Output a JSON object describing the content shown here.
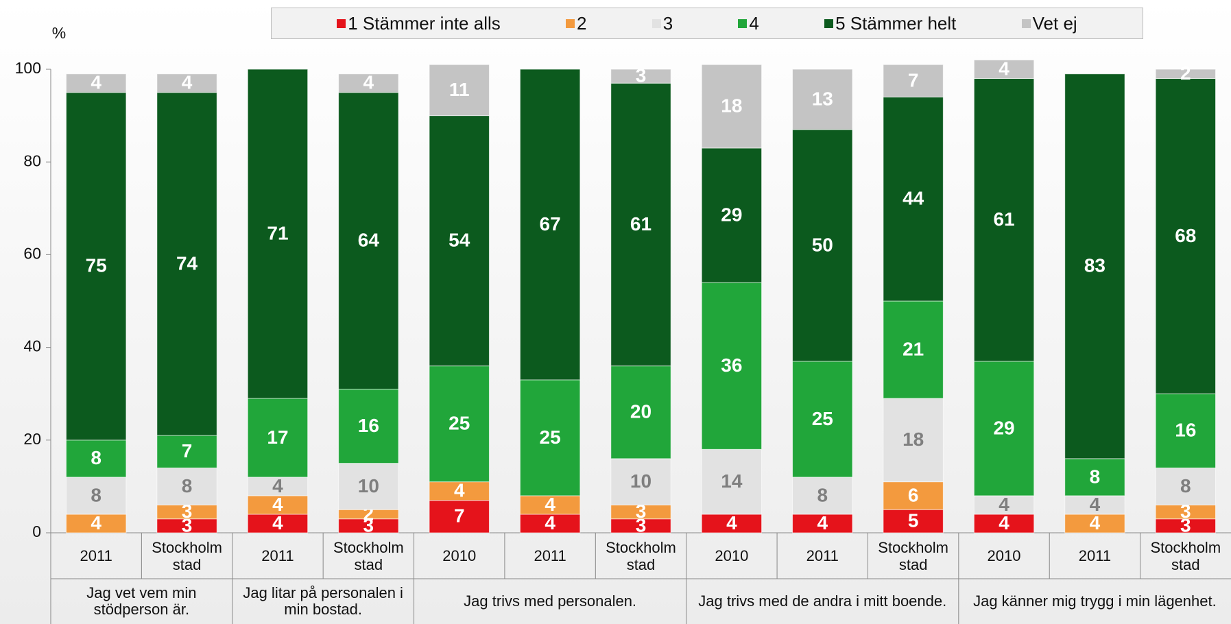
{
  "chart_data": {
    "type": "stacked-bar",
    "y_label": "%",
    "groups": [
      {
        "name": "Jag vet vem min stödperson är.",
        "categories": [
          "2011",
          "Stockholm stad"
        ]
      },
      {
        "name": "Jag litar på personalen i min bostad.",
        "categories": [
          "2011",
          "Stockholm stad"
        ]
      },
      {
        "name": "Jag trivs med personalen.",
        "categories": [
          "2010",
          "2011",
          "Stockholm stad"
        ]
      },
      {
        "name": "Jag trivs med de andra i mitt boende.",
        "categories": [
          "2010",
          "2011",
          "Stockholm stad"
        ]
      },
      {
        "name": "Jag känner mig trygg i min lägenhet.",
        "categories": [
          "2010",
          "2011",
          "Stockholm stad"
        ]
      }
    ],
    "series": [
      {
        "name": "1 Stämmer inte alls",
        "color": "#e5131b",
        "label_color": "#ffffff",
        "values": [
          null,
          3,
          4,
          3,
          7,
          4,
          3,
          4,
          4,
          5,
          4,
          null,
          3
        ]
      },
      {
        "name": "2",
        "color": "#f39a3e",
        "label_color": "#ffffff",
        "values": [
          4,
          3,
          4,
          2,
          4,
          4,
          3,
          null,
          null,
          6,
          null,
          4,
          3
        ]
      },
      {
        "name": "3",
        "color": "#e2e2e2",
        "label_color": "#7f7f7f",
        "values": [
          8,
          8,
          4,
          10,
          null,
          null,
          10,
          14,
          8,
          18,
          4,
          4,
          8
        ]
      },
      {
        "name": "4",
        "color": "#21a63a",
        "label_color": "#ffffff",
        "values": [
          8,
          7,
          17,
          16,
          25,
          25,
          20,
          36,
          25,
          21,
          29,
          8,
          16
        ]
      },
      {
        "name": "5 Stämmer helt",
        "color": "#0c5a1e",
        "label_color": "#ffffff",
        "values": [
          75,
          74,
          71,
          64,
          54,
          67,
          61,
          29,
          50,
          44,
          61,
          83,
          68
        ]
      },
      {
        "name": "Vet ej",
        "color": "#c4c4c4",
        "label_color": "#ffffff",
        "values": [
          4,
          4,
          null,
          4,
          11,
          null,
          3,
          18,
          13,
          7,
          4,
          null,
          2
        ]
      }
    ],
    "ylim": [
      0,
      100
    ],
    "yticks": [
      0,
      20,
      40,
      60,
      80,
      100
    ]
  }
}
